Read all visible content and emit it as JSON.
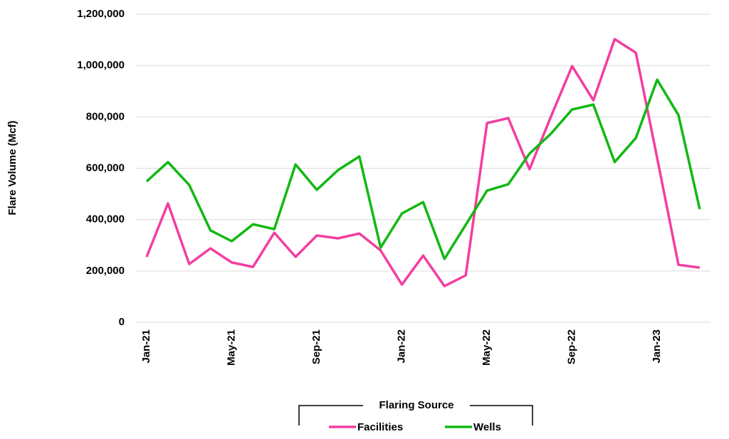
{
  "chart_data": {
    "type": "line",
    "y_label": "Flare Volume (Mcf)",
    "legend_title": "Flaring Source",
    "categories": [
      "Jan-21",
      null,
      null,
      null,
      "May-21",
      null,
      null,
      null,
      "Sep-21",
      null,
      null,
      null,
      "Jan-22",
      null,
      null,
      null,
      "May-22",
      null,
      null,
      null,
      "Sep-22",
      null,
      null,
      null,
      "Jan-23",
      null,
      null
    ],
    "series": [
      {
        "name": "Facilities",
        "color": "#f23ea0",
        "values": [
          255000,
          463000,
          227000,
          288000,
          233000,
          216000,
          349000,
          255000,
          338000,
          327000,
          346000,
          280000,
          147000,
          260000,
          141000,
          183000,
          776000,
          795000,
          596000,
          800000,
          998000,
          865000,
          1103000,
          1050000,
          640000,
          224000,
          213000
        ]
      },
      {
        "name": "Wells",
        "color": "#12b812",
        "values": [
          549000,
          624000,
          535000,
          358000,
          316000,
          382000,
          363000,
          615000,
          516000,
          593000,
          646000,
          291000,
          424000,
          468000,
          247000,
          380000,
          513000,
          538000,
          657000,
          734000,
          829000,
          848000,
          624000,
          718000,
          945000,
          807000,
          441000
        ]
      }
    ],
    "ylim": [
      0,
      1200000
    ],
    "yticks": [
      0,
      {
        "value": 200000,
        "label": "200,000"
      },
      {
        "value": 400000,
        "label": "400,000"
      },
      {
        "value": 600000,
        "label": "600,000"
      },
      {
        "value": 800000,
        "label": "800,000"
      },
      {
        "value": 1000000,
        "label": "1,000,000"
      },
      {
        "value": 1200000,
        "label": "1,200,000"
      }
    ],
    "grid": true
  }
}
